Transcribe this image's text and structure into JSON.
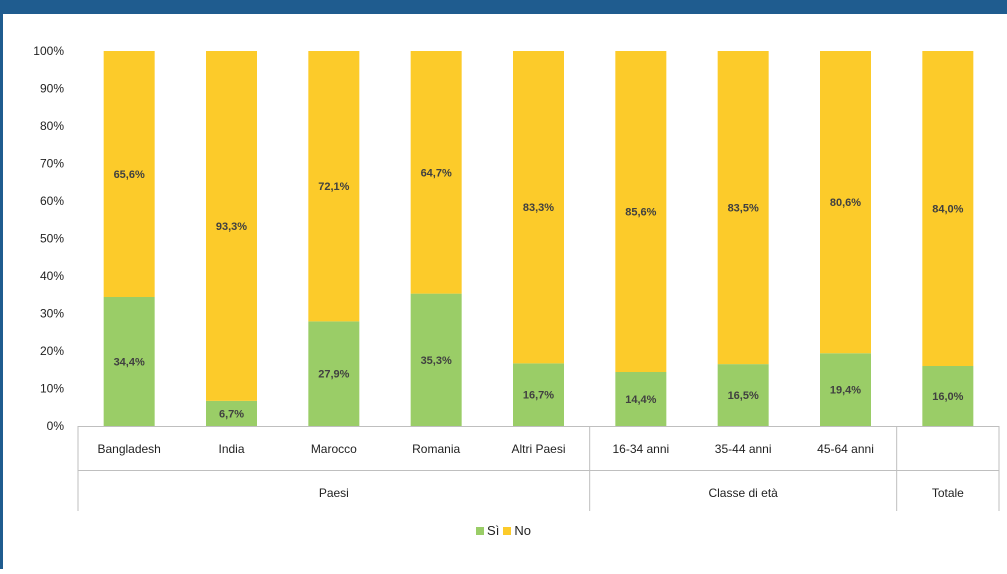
{
  "chart_data": {
    "type": "bar",
    "stacked": true,
    "categories": [
      "Bangladesh",
      "India",
      "Marocco",
      "Romania",
      "Altri Paesi",
      "16-34 anni",
      "35-44 anni",
      "45-64 anni",
      ""
    ],
    "groups": [
      {
        "label": "Paesi",
        "span": 5
      },
      {
        "label": "Classe di età",
        "span": 3
      },
      {
        "label": "Totale",
        "span": 1
      }
    ],
    "series": [
      {
        "name": "Sì",
        "color": "#9acd67",
        "values": [
          34.4,
          6.7,
          27.9,
          35.3,
          16.7,
          14.4,
          16.5,
          19.4,
          16.0
        ],
        "labels": [
          "34,4%",
          "6,7%",
          "27,9%",
          "35,3%",
          "16,7%",
          "14,4%",
          "16,5%",
          "19,4%",
          "16,0%"
        ]
      },
      {
        "name": "No",
        "color": "#fccb2a",
        "values": [
          65.6,
          93.3,
          72.1,
          64.7,
          83.3,
          85.6,
          83.5,
          80.6,
          84.0
        ],
        "labels": [
          "65,6%",
          "93,3%",
          "72,1%",
          "64,7%",
          "83,3%",
          "85,6%",
          "83,5%",
          "80,6%",
          "84,0%"
        ]
      }
    ],
    "ylim": [
      0,
      100
    ],
    "yticks": [
      "0%",
      "10%",
      "20%",
      "30%",
      "40%",
      "50%",
      "60%",
      "70%",
      "80%",
      "90%",
      "100%"
    ],
    "grid": false,
    "legend_position": "bottom"
  }
}
